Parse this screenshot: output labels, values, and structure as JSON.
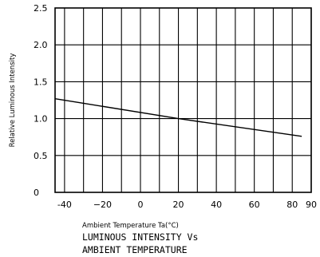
{
  "chart_data": {
    "type": "line",
    "xlabel": "Ambient Temperature Ta(°C)",
    "ylabel": "Relative Luminous Intensity",
    "caption": [
      "LUMINOUS INTENSITY Vs",
      "AMBIENT TEMPERATURE"
    ],
    "xlim": [
      -45,
      90
    ],
    "ylim": [
      0,
      2.5
    ],
    "grid": true,
    "x_ticks": [
      -40,
      -20,
      0,
      20,
      40,
      60,
      80,
      90
    ],
    "x_tick_labels": [
      "-40",
      "−20",
      "0",
      "20",
      "40",
      "60",
      "80",
      "90"
    ],
    "y_ticks": [
      0,
      0.5,
      1.0,
      1.5,
      2.0,
      2.5
    ],
    "y_tick_labels": [
      "0",
      "0.5",
      "1.0",
      "1.5",
      "2.0",
      "2.5"
    ],
    "series": [
      {
        "x": [
          -45,
          20,
          85
        ],
        "y": [
          1.27,
          1.0,
          0.76
        ]
      }
    ]
  }
}
